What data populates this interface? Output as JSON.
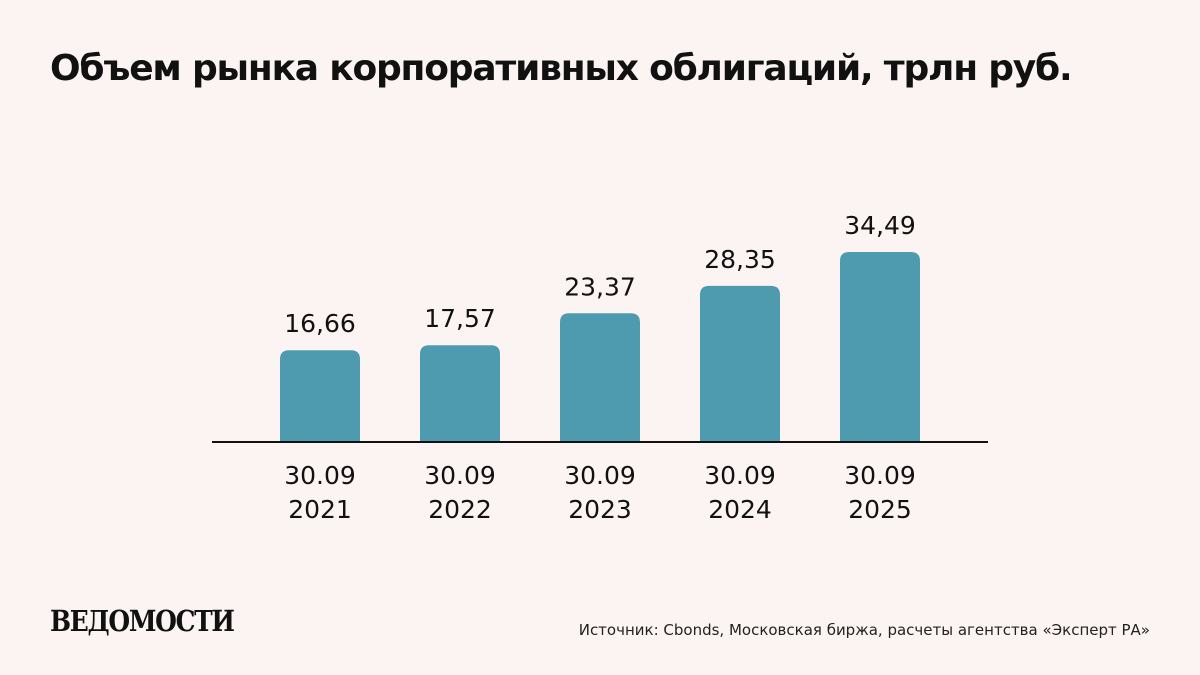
{
  "header": {
    "title": "Объем рынка корпоративных облигаций, трлн руб."
  },
  "chart_data": {
    "type": "bar",
    "title": "Объем рынка корпоративных облигаций, трлн руб.",
    "categories": [
      [
        "30.09",
        "2021"
      ],
      [
        "30.09",
        "2022"
      ],
      [
        "30.09",
        "2023"
      ],
      [
        "30.09",
        "2024"
      ],
      [
        "30.09",
        "2025"
      ]
    ],
    "values": [
      16.66,
      17.57,
      23.37,
      28.35,
      34.49
    ],
    "value_labels": [
      "16,66",
      "17,57",
      "23,37",
      "28,35",
      "34,49"
    ],
    "xlabel": "",
    "ylabel": "",
    "ylim": [
      0,
      35
    ],
    "grid": false,
    "legend": "none",
    "bar_color": "#4e9bb0",
    "axis_color": "#111111"
  },
  "footer": {
    "logo_text": "ВЕДОМОСТИ",
    "source": "Источник: Cbonds, Московская биржа, расчеты агентства «Эксперт РА»"
  },
  "colors": {
    "background": "#fcf4f2",
    "text": "#111111"
  }
}
